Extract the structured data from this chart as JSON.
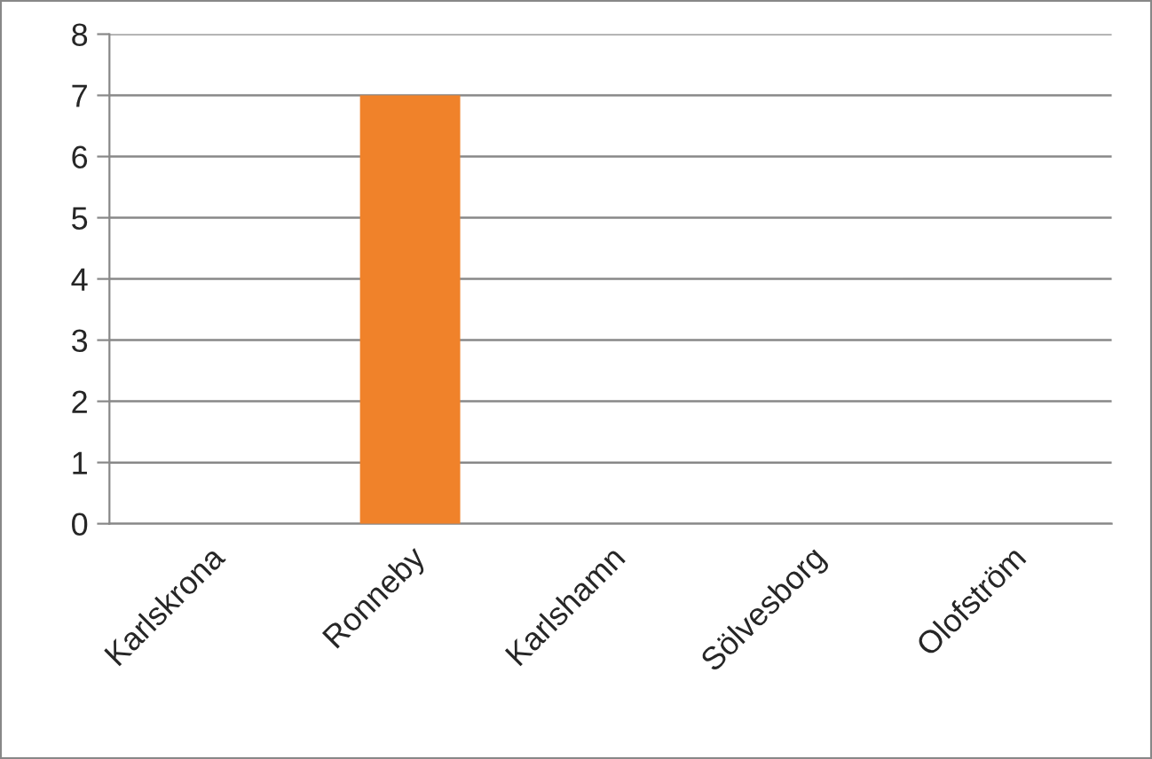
{
  "chart_data": {
    "type": "bar",
    "categories": [
      "Karlskrona",
      "Ronneby",
      "Karlshamn",
      "Sölvesborg",
      "Olofström"
    ],
    "values": [
      0,
      7,
      0,
      0,
      0
    ],
    "color": "#f0822a",
    "ylim": [
      0,
      8
    ],
    "yticks": [
      0,
      1,
      2,
      3,
      4,
      5,
      6,
      7,
      8
    ],
    "grid": "y",
    "legend": false
  }
}
